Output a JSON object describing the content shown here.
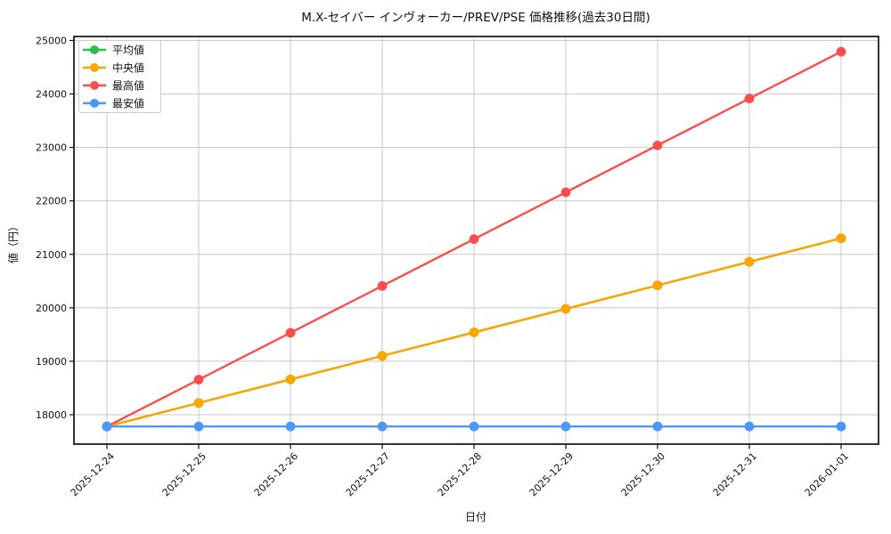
{
  "chart_data": {
    "type": "line",
    "title": "M.X-セイバー インヴォーカー/PREV/PSE 価格推移(過去30日間)",
    "xlabel": "日付",
    "ylabel": "値（円）",
    "x": [
      "2025-12-24",
      "2025-12-25",
      "2025-12-26",
      "2025-12-27",
      "2025-12-28",
      "2025-12-29",
      "2025-12-30",
      "2025-12-31",
      "2026-01-01"
    ],
    "series": [
      {
        "key": "mean",
        "name": "平均値",
        "color": "#2cbe4e",
        "values": [
          17780,
          18220,
          18660,
          19100,
          19540,
          19980,
          20420,
          20860,
          21300
        ]
      },
      {
        "key": "median",
        "name": "中央値",
        "color": "#ffa500",
        "values": [
          17780,
          18220,
          18660,
          19100,
          19540,
          19980,
          20420,
          20860,
          21300
        ]
      },
      {
        "key": "max",
        "name": "最高値",
        "color": "#fc4e4e",
        "values": [
          17780,
          18656,
          19533,
          20409,
          21285,
          22161,
          23038,
          23914,
          24790
        ]
      },
      {
        "key": "min",
        "name": "最安値",
        "color": "#4b96ff",
        "values": [
          17780,
          17780,
          17780,
          17780,
          17780,
          17780,
          17780,
          17780,
          17780
        ]
      }
    ],
    "ylim": [
      17450,
      25075
    ],
    "yticks": [
      18000,
      19000,
      20000,
      21000,
      22000,
      23000,
      24000,
      25000
    ],
    "grid": true,
    "legend_position": "upper left"
  },
  "colors": {
    "background": "#ffffff",
    "grid": "#c8c8c8",
    "axis": "#111111",
    "legend_border": "#cccccc"
  }
}
